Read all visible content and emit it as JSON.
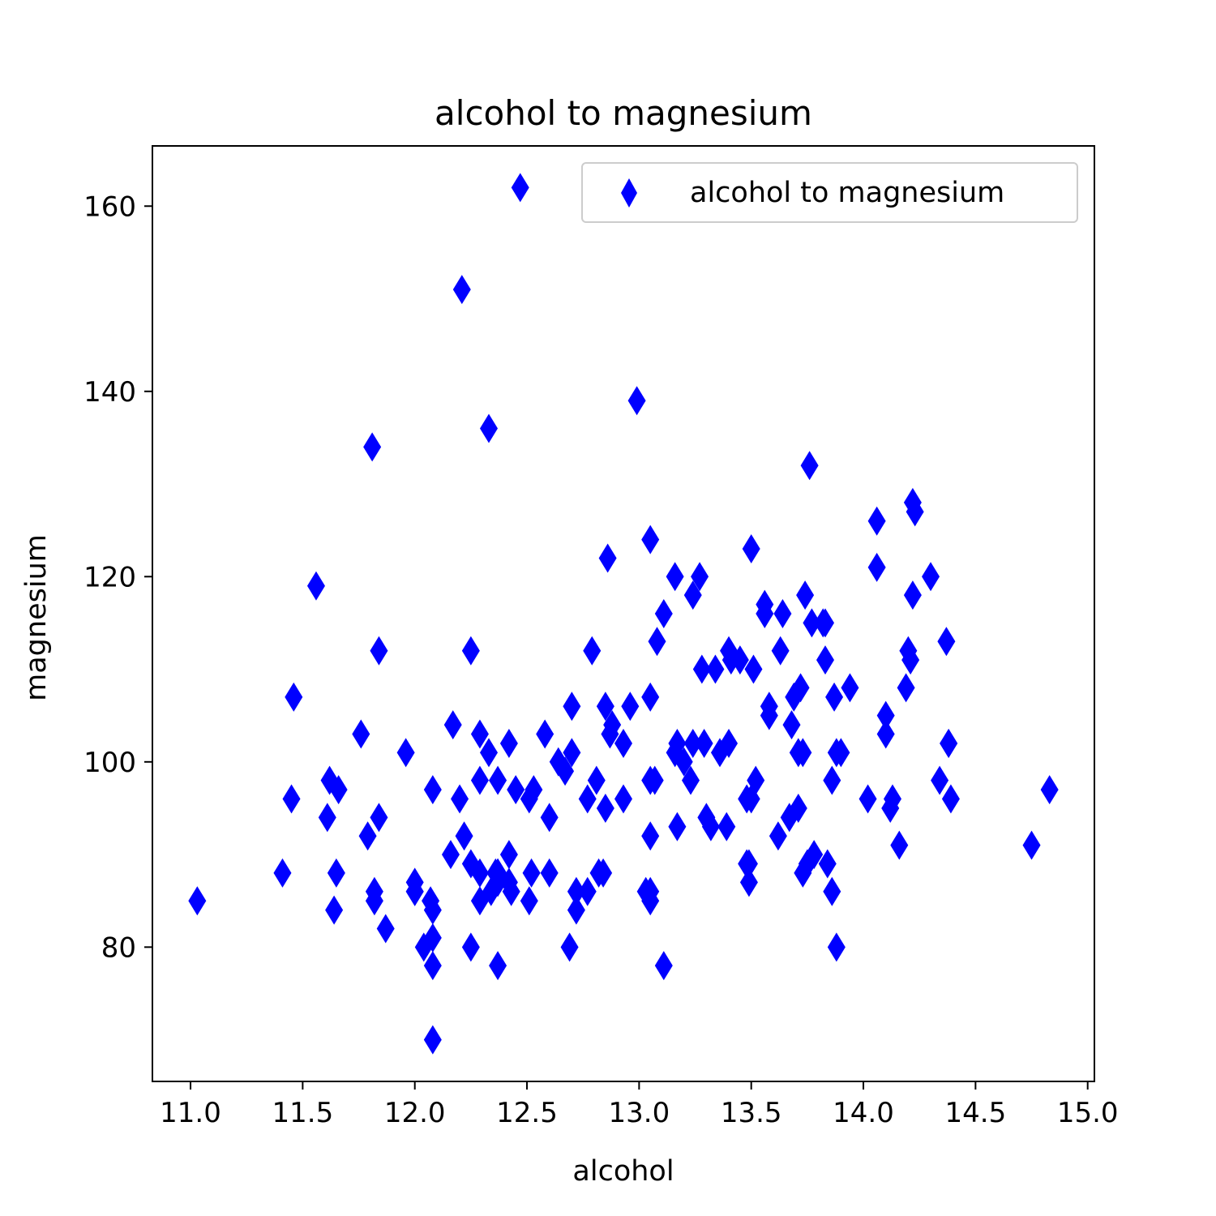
{
  "chart_data": {
    "type": "scatter",
    "title": "alcohol to magnesium",
    "xlabel": "alcohol",
    "ylabel": "magnesium",
    "xlim": [
      10.83,
      15.03
    ],
    "ylim": [
      65.5,
      166.5
    ],
    "xticks": [
      11.0,
      11.5,
      12.0,
      12.5,
      13.0,
      13.5,
      14.0,
      14.5,
      15.0
    ],
    "xtick_labels": [
      "11.0",
      "11.5",
      "12.0",
      "12.5",
      "13.0",
      "13.5",
      "14.0",
      "14.5",
      "15.0"
    ],
    "yticks": [
      80,
      100,
      120,
      140,
      160
    ],
    "ytick_labels": [
      "80",
      "100",
      "120",
      "140",
      "160"
    ],
    "grid": false,
    "legend": {
      "position": "top-right",
      "entries": [
        "alcohol to magnesium"
      ]
    },
    "series": [
      {
        "name": "alcohol to magnesium",
        "marker": "thin-diamond",
        "color": "#0000ff",
        "points": [
          [
            14.23,
            127
          ],
          [
            13.2,
            100
          ],
          [
            13.16,
            101
          ],
          [
            14.37,
            113
          ],
          [
            13.24,
            118
          ],
          [
            14.2,
            112
          ],
          [
            14.39,
            96
          ],
          [
            14.06,
            121
          ],
          [
            14.83,
            97
          ],
          [
            13.86,
            98
          ],
          [
            14.1,
            105
          ],
          [
            14.12,
            95
          ],
          [
            13.75,
            89
          ],
          [
            14.75,
            91
          ],
          [
            14.38,
            102
          ],
          [
            13.63,
            112
          ],
          [
            14.3,
            120
          ],
          [
            13.83,
            115
          ],
          [
            14.19,
            108
          ],
          [
            13.64,
            116
          ],
          [
            14.06,
            126
          ],
          [
            12.93,
            102
          ],
          [
            13.71,
            101
          ],
          [
            12.85,
            95
          ],
          [
            13.5,
            96
          ],
          [
            13.05,
            124
          ],
          [
            13.39,
            93
          ],
          [
            13.3,
            94
          ],
          [
            13.87,
            107
          ],
          [
            14.02,
            96
          ],
          [
            13.73,
            101
          ],
          [
            13.58,
            106
          ],
          [
            13.68,
            104
          ],
          [
            13.76,
            132
          ],
          [
            13.51,
            110
          ],
          [
            13.48,
            96
          ],
          [
            13.28,
            110
          ],
          [
            13.05,
            98
          ],
          [
            13.07,
            98
          ],
          [
            14.22,
            128
          ],
          [
            13.56,
            117
          ],
          [
            13.41,
            111
          ],
          [
            13.88,
            101
          ],
          [
            13.24,
            102
          ],
          [
            13.05,
            107
          ],
          [
            14.21,
            111
          ],
          [
            14.38,
            102
          ],
          [
            13.9,
            101
          ],
          [
            14.1,
            103
          ],
          [
            13.94,
            108
          ],
          [
            13.05,
            92
          ],
          [
            13.83,
            111
          ],
          [
            13.82,
            115
          ],
          [
            13.77,
            115
          ],
          [
            13.74,
            118
          ],
          [
            13.56,
            116
          ],
          [
            14.22,
            118
          ],
          [
            13.29,
            102
          ],
          [
            13.72,
            108
          ],
          [
            12.37,
            88
          ],
          [
            12.33,
            101
          ],
          [
            12.64,
            100
          ],
          [
            13.67,
            94
          ],
          [
            12.37,
            87
          ],
          [
            12.17,
            104
          ],
          [
            12.37,
            98
          ],
          [
            13.11,
            78
          ],
          [
            12.37,
            78
          ],
          [
            13.34,
            110
          ],
          [
            12.21,
            151
          ],
          [
            12.29,
            103
          ],
          [
            13.86,
            86
          ],
          [
            13.49,
            87
          ],
          [
            12.99,
            139
          ],
          [
            11.96,
            101
          ],
          [
            11.66,
            97
          ],
          [
            13.03,
            86
          ],
          [
            11.84,
            112
          ],
          [
            12.33,
            136
          ],
          [
            12.7,
            101
          ],
          [
            12.0,
            86
          ],
          [
            12.72,
            86
          ],
          [
            12.08,
            78
          ],
          [
            13.05,
            85
          ],
          [
            11.84,
            94
          ],
          [
            12.67,
            99
          ],
          [
            12.16,
            90
          ],
          [
            11.65,
            88
          ],
          [
            11.64,
            84
          ],
          [
            12.08,
            70
          ],
          [
            12.08,
            81
          ],
          [
            12.0,
            87
          ],
          [
            12.69,
            80
          ],
          [
            12.29,
            88
          ],
          [
            11.62,
            98
          ],
          [
            12.47,
            162
          ],
          [
            11.81,
            134
          ],
          [
            12.29,
            85
          ],
          [
            12.37,
            88
          ],
          [
            12.29,
            98
          ],
          [
            12.08,
            97
          ],
          [
            12.6,
            88
          ],
          [
            12.34,
            86
          ],
          [
            11.82,
            85
          ],
          [
            12.51,
            85
          ],
          [
            12.42,
            90
          ],
          [
            12.25,
            80
          ],
          [
            12.72,
            84
          ],
          [
            12.22,
            92
          ],
          [
            11.61,
            94
          ],
          [
            11.46,
            107
          ],
          [
            12.52,
            88
          ],
          [
            11.76,
            103
          ],
          [
            11.41,
            88
          ],
          [
            12.08,
            84
          ],
          [
            11.03,
            85
          ],
          [
            11.82,
            86
          ],
          [
            12.42,
            87
          ],
          [
            12.77,
            96
          ],
          [
            12.0,
            86
          ],
          [
            11.45,
            96
          ],
          [
            11.56,
            119
          ],
          [
            12.42,
            102
          ],
          [
            13.05,
            86
          ],
          [
            11.87,
            82
          ],
          [
            12.07,
            85
          ],
          [
            12.43,
            86
          ],
          [
            11.79,
            92
          ],
          [
            12.37,
            88
          ],
          [
            12.04,
            80
          ],
          [
            12.86,
            122
          ],
          [
            12.88,
            104
          ],
          [
            12.81,
            98
          ],
          [
            12.7,
            106
          ],
          [
            12.51,
            96
          ],
          [
            12.6,
            94
          ],
          [
            12.25,
            112
          ],
          [
            12.53,
            97
          ],
          [
            13.49,
            89
          ],
          [
            12.84,
            88
          ],
          [
            12.93,
            96
          ],
          [
            13.36,
            101
          ],
          [
            13.52,
            98
          ],
          [
            13.62,
            92
          ],
          [
            12.25,
            89
          ],
          [
            13.16,
            120
          ],
          [
            13.88,
            80
          ],
          [
            12.87,
            103
          ],
          [
            13.32,
            93
          ],
          [
            13.08,
            113
          ],
          [
            13.5,
            123
          ],
          [
            12.79,
            112
          ],
          [
            13.11,
            116
          ],
          [
            13.23,
            98
          ],
          [
            12.58,
            103
          ],
          [
            13.17,
            93
          ],
          [
            13.84,
            89
          ],
          [
            12.45,
            97
          ],
          [
            14.34,
            98
          ],
          [
            13.48,
            89
          ],
          [
            12.36,
            88
          ],
          [
            13.69,
            107
          ],
          [
            12.85,
            106
          ],
          [
            12.96,
            106
          ],
          [
            13.78,
            90
          ],
          [
            13.73,
            88
          ],
          [
            13.45,
            111
          ],
          [
            12.82,
            88
          ],
          [
            13.58,
            105
          ],
          [
            13.4,
            112
          ],
          [
            12.2,
            96
          ],
          [
            12.77,
            86
          ],
          [
            14.16,
            91
          ],
          [
            13.71,
            95
          ],
          [
            13.4,
            102
          ],
          [
            13.27,
            120
          ],
          [
            13.17,
            102
          ],
          [
            14.13,
            96
          ]
        ]
      }
    ]
  }
}
